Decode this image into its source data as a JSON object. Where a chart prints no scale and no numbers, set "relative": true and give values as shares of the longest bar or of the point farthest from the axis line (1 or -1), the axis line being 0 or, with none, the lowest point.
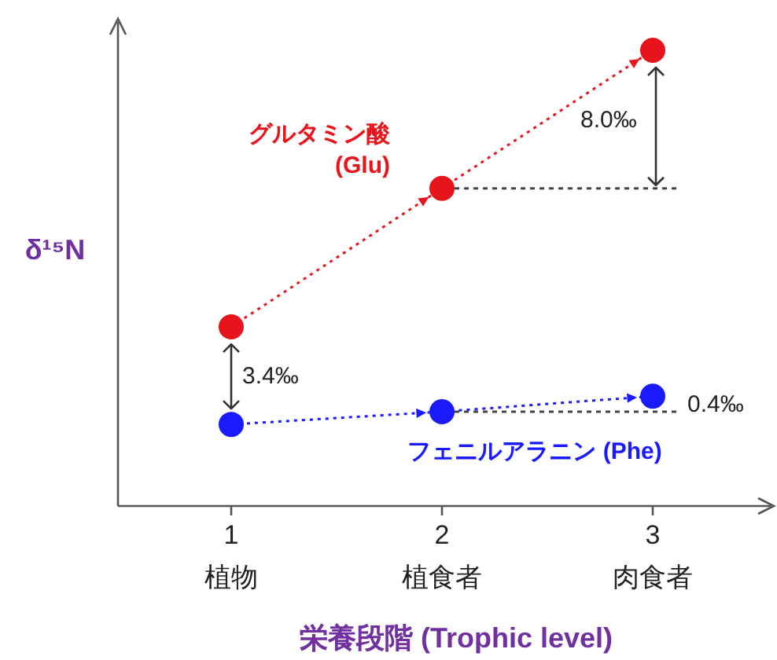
{
  "chart_data": {
    "type": "line",
    "relative": true,
    "xlabel": "栄養段階 (Trophic level)",
    "ylabel": "δ¹⁵N",
    "categories": [
      "1 植物",
      "2 植食者",
      "3 肉食者"
    ],
    "series": [
      {
        "name": "グルタミン酸 (Glu)",
        "color": "#e8141c",
        "values": [
          0.393,
          0.697,
          1
        ]
      },
      {
        "name": "フェニルアラニン (Phe)",
        "color": "#1a1aff",
        "values": [
          0.179,
          0.207,
          0.241
        ]
      }
    ],
    "annotations": [
      "8.0‰",
      "3.4‰",
      "0.4‰"
    ],
    "marker": "circle",
    "line_style": "dotted"
  }
}
